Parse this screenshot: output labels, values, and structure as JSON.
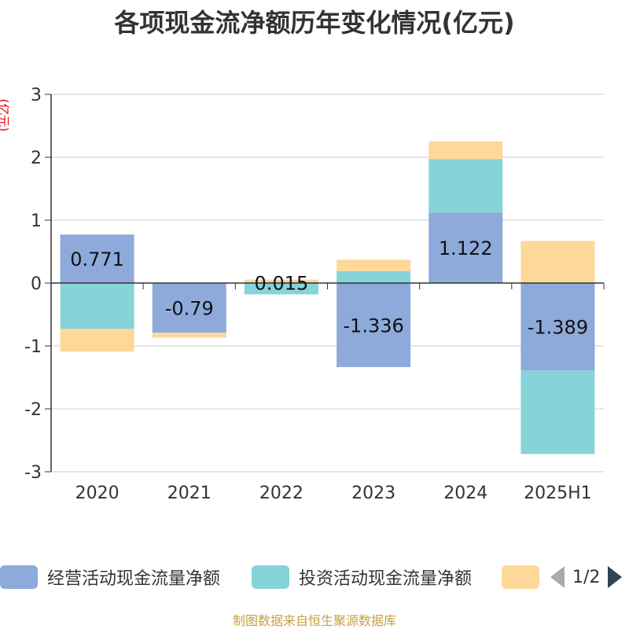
{
  "title": "各项现金流净额历年变化情况(亿元)",
  "unit_label": "(亿元)",
  "source": "制图数据来自恒生聚源数据库",
  "legend": {
    "items": [
      {
        "label": "经营活动现金流量净额",
        "color": "#8eaadb"
      },
      {
        "label": "投资活动现金流量净额",
        "color": "#86d4d8"
      },
      {
        "label": "",
        "color": "#fdd899"
      }
    ],
    "page": "1/2"
  },
  "chart_data": {
    "type": "bar",
    "stacked": true,
    "categories": [
      "2020",
      "2021",
      "2022",
      "2023",
      "2024",
      "2025H1"
    ],
    "ylim": [
      -3,
      3
    ],
    "yticks": [
      -3,
      -2,
      -1,
      0,
      1,
      2,
      3
    ],
    "grid": true,
    "legend_position": "bottom",
    "series": [
      {
        "name": "经营活动现金流量净额",
        "color": "#8eaadb",
        "values": [
          0.771,
          -0.79,
          0.015,
          -1.336,
          1.122,
          -1.389
        ],
        "labels": [
          "0.771",
          "-0.79",
          "0.015",
          "-1.336",
          "1.122",
          "-1.389"
        ]
      },
      {
        "name": "投资活动现金流量净额",
        "color": "#86d4d8",
        "values": [
          -0.73,
          0.0,
          -0.18,
          0.19,
          0.85,
          -1.33
        ]
      },
      {
        "color": "#fdd899",
        "values": [
          -0.36,
          -0.08,
          0.04,
          0.18,
          0.28,
          0.67
        ]
      }
    ]
  }
}
